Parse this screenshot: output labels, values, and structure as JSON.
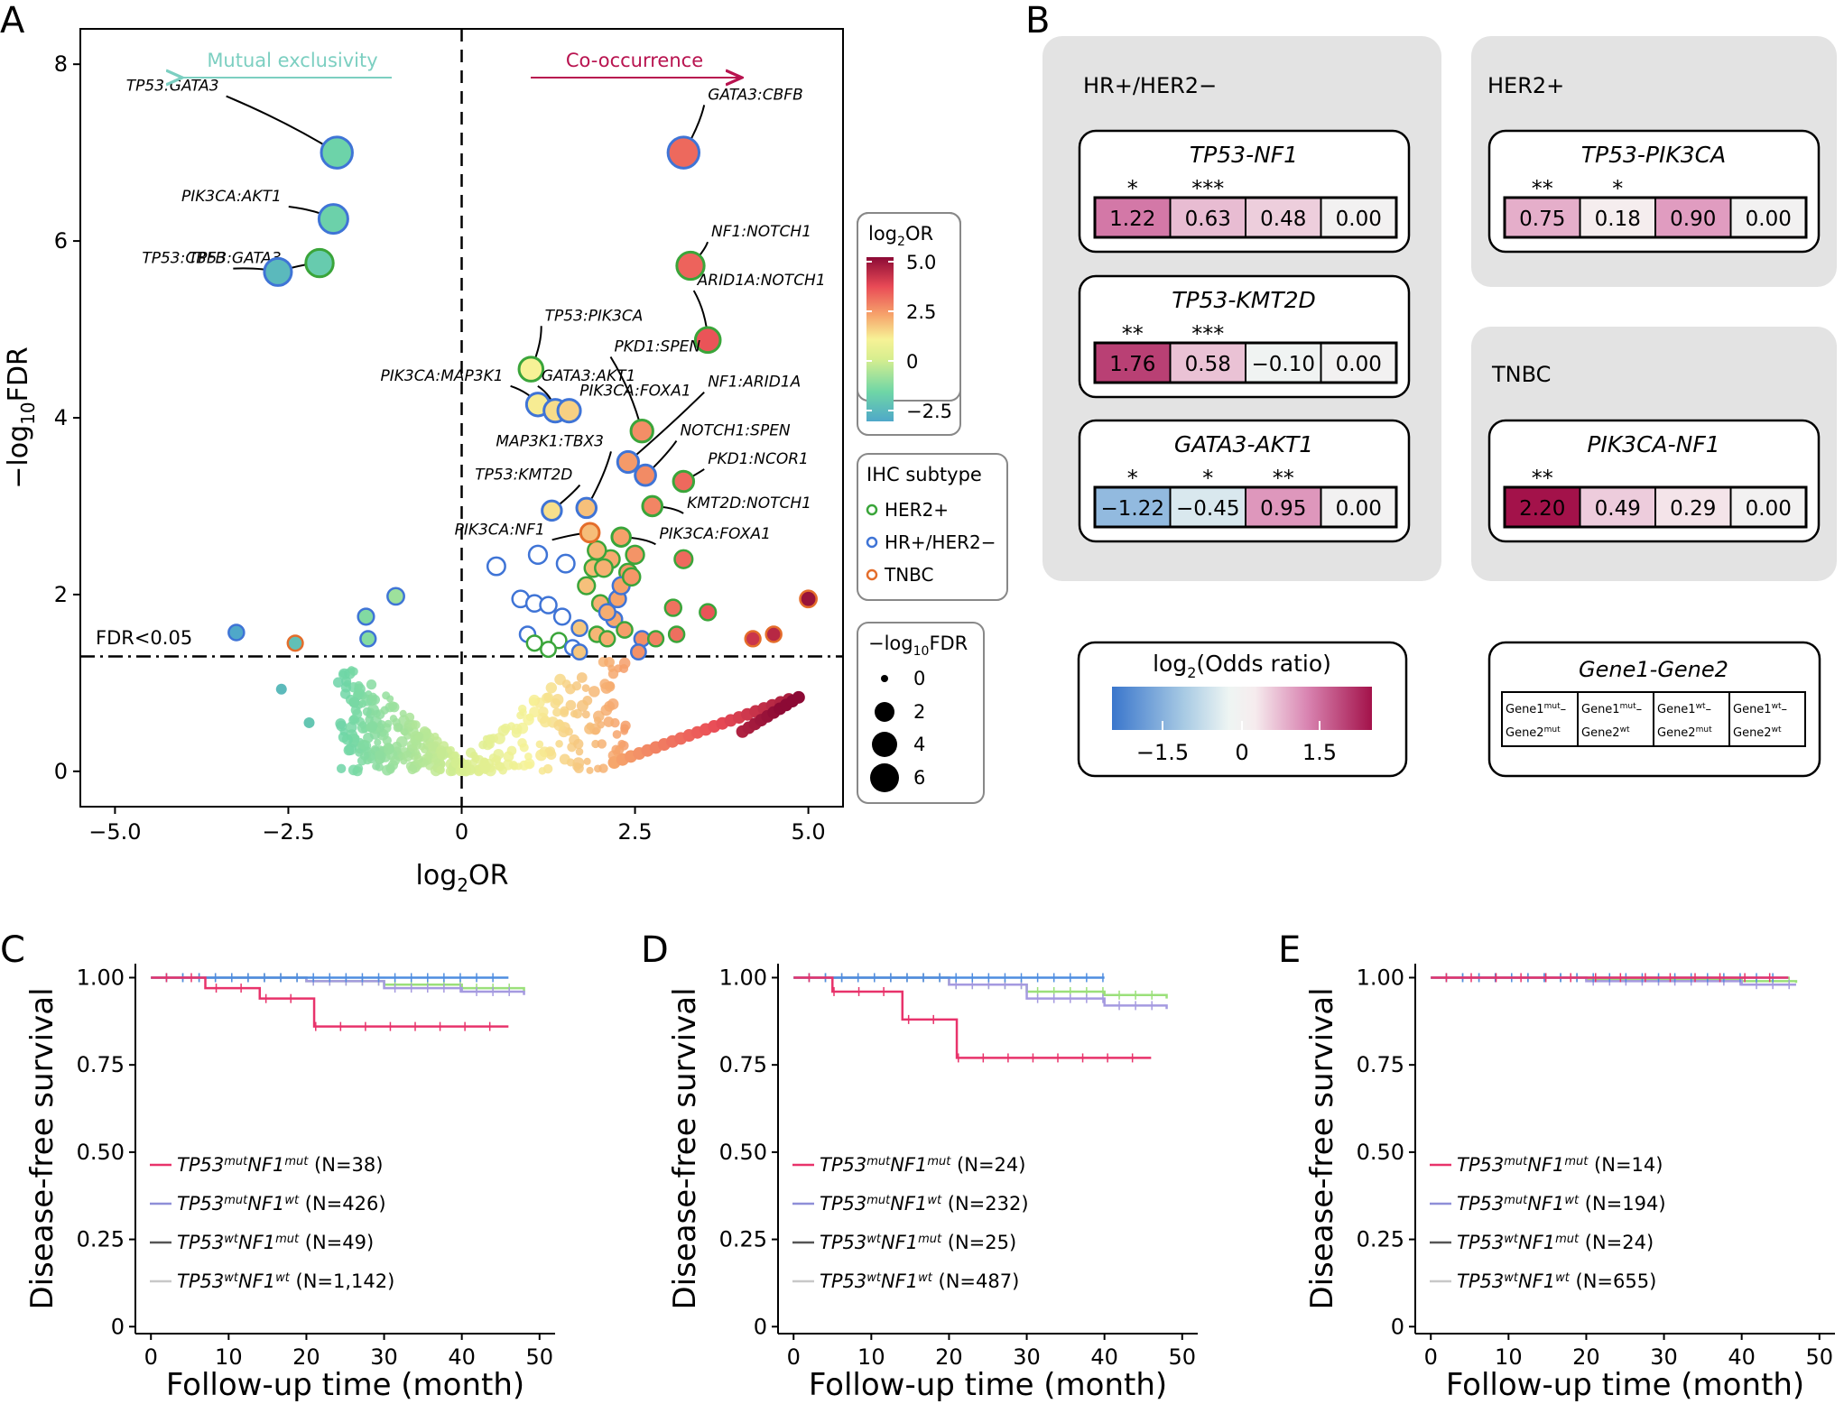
{
  "panels": {
    "a": "A",
    "b": "B",
    "c": "C",
    "d": "D",
    "e": "E"
  },
  "volcano": {
    "xlabel_base": "log",
    "xlabel_sub": "2",
    "xlabel_tail": "OR",
    "ylabel_head": "−log",
    "ylabel_sub": "10",
    "ylabel_tail": "FDR",
    "xticks": [
      "−5.0",
      "−2.5",
      "0",
      "2.5",
      "5.0"
    ],
    "yticks": [
      "0",
      "2",
      "4",
      "6",
      "8"
    ],
    "fdr_label": "FDR<0.05",
    "left_arrow": "Mutual exclusivity",
    "right_arrow": "Co-occurrence",
    "colors": {
      "left_arrow": "#7ccfc1",
      "right_arrow": "#b8134f"
    }
  },
  "legends": {
    "or": {
      "title_base": "log",
      "title_sub": "2",
      "title_tail": "OR",
      "ticks": [
        "5.0",
        "2.5",
        "0",
        "−2.5"
      ]
    },
    "ihc": {
      "title": "IHC subtype",
      "items": [
        {
          "label": "HER2+",
          "color": "#3aa53a"
        },
        {
          "label": "HR+/HER2−",
          "color": "#3f74d6"
        },
        {
          "label": "TNBC",
          "color": "#e46d2b"
        }
      ]
    },
    "fdr": {
      "title_head": "−log",
      "title_sub": "10",
      "title_tail": "FDR",
      "items": [
        "0",
        "2",
        "4",
        "6"
      ]
    }
  },
  "heatmap": {
    "groups": {
      "hr": "HR+/HER2−",
      "her2": "HER2+",
      "tnbc": "TNBC"
    },
    "pairs": [
      {
        "name": "TP53-NF1",
        "values": [
          "1.22",
          "0.63",
          "0.48",
          "0.00"
        ],
        "stars": [
          "*",
          "***",
          "",
          ""
        ]
      },
      {
        "name": "TP53-KMT2D",
        "values": [
          "1.76",
          "0.58",
          "−0.10",
          "0.00"
        ],
        "stars": [
          "**",
          "***",
          "",
          ""
        ]
      },
      {
        "name": "GATA3-AKT1",
        "values": [
          "−1.22",
          "−0.45",
          "0.95",
          "0.00"
        ],
        "stars": [
          "*",
          "*",
          "**",
          ""
        ]
      },
      {
        "name": "TP53-PIK3CA",
        "values": [
          "0.75",
          "0.18",
          "0.90",
          "0.00"
        ],
        "stars": [
          "**",
          "*",
          "",
          ""
        ]
      },
      {
        "name": "PIK3CA-NF1",
        "values": [
          "2.20",
          "0.49",
          "0.29",
          "0.00"
        ],
        "stars": [
          "**",
          "",
          "",
          ""
        ]
      }
    ],
    "scale": {
      "title_base": "log",
      "title_sub": "2",
      "title_tail": "(Odds ratio)",
      "ticks": [
        "−1.5",
        "0",
        "1.5"
      ]
    },
    "key": {
      "title": "Gene1-Gene2",
      "cells": [
        [
          {
            "t": "Gene1",
            "s": "mut",
            "e": "–"
          },
          {
            "t": "Gene2",
            "s": "mut",
            "e": ""
          }
        ],
        [
          {
            "t": "Gene1",
            "s": "mut",
            "e": "–"
          },
          {
            "t": "Gene2",
            "s": "wt",
            "e": ""
          }
        ],
        [
          {
            "t": "Gene1",
            "s": "wt",
            "e": "–"
          },
          {
            "t": "Gene2",
            "s": "mut",
            "e": ""
          }
        ],
        [
          {
            "t": "Gene1",
            "s": "wt",
            "e": "–"
          },
          {
            "t": "Gene2",
            "s": "wt",
            "e": ""
          }
        ]
      ]
    }
  },
  "km": {
    "ylabel": "Disease-free survival",
    "xlabel": "Follow-up time (month)",
    "yticks": [
      "1.00",
      "0.75",
      "0.50",
      "0.25",
      "0"
    ],
    "xticks": [
      "0",
      "10",
      "20",
      "30",
      "40",
      "50"
    ],
    "colors": [
      "#e8336b",
      "#8f8fd8",
      "#555555",
      "#c8c8c8"
    ],
    "panels": [
      {
        "legend": [
          {
            "g1": "TP53",
            "s1": "mut",
            "g2": "NF1",
            "s2": "mut",
            "n": " (N=38)"
          },
          {
            "g1": "TP53",
            "s1": "mut",
            "g2": "NF1",
            "s2": "wt",
            "n": " (N=426)"
          },
          {
            "g1": "TP53",
            "s1": "wt",
            "g2": "NF1",
            "s2": "mut",
            "n": " (N=49)"
          },
          {
            "g1": "TP53",
            "s1": "wt",
            "g2": "NF1",
            "s2": "wt",
            "n": " (N=1,142)"
          }
        ]
      },
      {
        "legend": [
          {
            "g1": "TP53",
            "s1": "mut",
            "g2": "NF1",
            "s2": "mut",
            "n": " (N=24)"
          },
          {
            "g1": "TP53",
            "s1": "mut",
            "g2": "NF1",
            "s2": "wt",
            "n": " (N=232)"
          },
          {
            "g1": "TP53",
            "s1": "wt",
            "g2": "NF1",
            "s2": "mut",
            "n": " (N=25)"
          },
          {
            "g1": "TP53",
            "s1": "wt",
            "g2": "NF1",
            "s2": "wt",
            "n": " (N=487)"
          }
        ]
      },
      {
        "legend": [
          {
            "g1": "TP53",
            "s1": "mut",
            "g2": "NF1",
            "s2": "mut",
            "n": " (N=14)"
          },
          {
            "g1": "TP53",
            "s1": "mut",
            "g2": "NF1",
            "s2": "wt",
            "n": " (N=194)"
          },
          {
            "g1": "TP53",
            "s1": "wt",
            "g2": "NF1",
            "s2": "mut",
            "n": " (N=24)"
          },
          {
            "g1": "TP53",
            "s1": "wt",
            "g2": "NF1",
            "s2": "wt",
            "n": " (N=655)"
          }
        ]
      }
    ]
  },
  "chart_data": [
    {
      "type": "scatter",
      "title": "",
      "xlabel": "log2OR",
      "ylabel": "−log10FDR",
      "xlim": [
        -5.5,
        5.5
      ],
      "ylim": [
        -0.4,
        8.4
      ],
      "threshold_y": 1.3,
      "labeled_points": [
        {
          "label": "TP53:GATA3",
          "x": -1.8,
          "y": 7.0,
          "subtype": "HR+/HER2−"
        },
        {
          "label": "PIK3CA:AKT1",
          "x": -1.85,
          "y": 6.25,
          "subtype": "HR+/HER2−"
        },
        {
          "label": "TP53:GATA3",
          "x": -2.05,
          "y": 5.75,
          "subtype": "HER2+"
        },
        {
          "label": "TP53:CBFB",
          "x": -2.65,
          "y": 5.65,
          "subtype": "HR+/HER2−"
        },
        {
          "label": "GATA3:CBFB",
          "x": 3.2,
          "y": 7.0,
          "subtype": "HR+/HER2−"
        },
        {
          "label": "NF1:NOTCH1",
          "x": 3.3,
          "y": 5.72,
          "subtype": "HER2+"
        },
        {
          "label": "ARID1A:NOTCH1",
          "x": 3.55,
          "y": 4.88,
          "subtype": "HER2+"
        },
        {
          "label": "TP53:PIK3CA",
          "x": 1.0,
          "y": 4.55,
          "subtype": "HER2+"
        },
        {
          "label": "PIK3CA:MAP3K1",
          "x": 1.1,
          "y": 4.15,
          "subtype": "HR+/HER2−"
        },
        {
          "label": "GATA3:AKT1",
          "x": 1.35,
          "y": 4.08,
          "subtype": "HR+/HER2−"
        },
        {
          "label": "PIK3CA:FOXA1",
          "x": 1.55,
          "y": 4.08,
          "subtype": "HR+/HER2−"
        },
        {
          "label": "PKD1:SPEN",
          "x": 2.6,
          "y": 3.85,
          "subtype": "HER2+"
        },
        {
          "label": "NF1:ARID1A",
          "x": 2.4,
          "y": 3.5,
          "subtype": "HR+/HER2−"
        },
        {
          "label": "NOTCH1:SPEN",
          "x": 2.65,
          "y": 3.35,
          "subtype": "HR+/HER2−"
        },
        {
          "label": "PKD1:NCOR1",
          "x": 3.2,
          "y": 3.28,
          "subtype": "HER2+"
        },
        {
          "label": "MAP3K1:TBX3",
          "x": 1.8,
          "y": 2.98,
          "subtype": "HR+/HER2−"
        },
        {
          "label": "TP53:KMT2D",
          "x": 1.3,
          "y": 2.95,
          "subtype": "HR+/HER2−"
        },
        {
          "label": "KMT2D:NOTCH1",
          "x": 2.75,
          "y": 3.0,
          "subtype": "HER2+"
        },
        {
          "label": "PIK3CA:NF1",
          "x": 1.85,
          "y": 2.7,
          "subtype": "TNBC"
        },
        {
          "label": "PIK3CA:FOXA1",
          "x": 2.3,
          "y": 2.65,
          "subtype": "HER2+"
        }
      ]
    },
    {
      "type": "table",
      "title": "HR+/HER2−",
      "rows": [
        "TP53-NF1",
        "TP53-KMT2D",
        "GATA3-AKT1"
      ],
      "values": [
        [
          1.22,
          0.63,
          0.48,
          0.0
        ],
        [
          1.76,
          0.58,
          -0.1,
          0.0
        ],
        [
          -1.22,
          -0.45,
          0.95,
          0.0
        ]
      ]
    },
    {
      "type": "table",
      "title": "HER2+",
      "rows": [
        "TP53-PIK3CA"
      ],
      "values": [
        [
          0.75,
          0.18,
          0.9,
          0.0
        ]
      ]
    },
    {
      "type": "table",
      "title": "TNBC",
      "rows": [
        "PIK3CA-NF1"
      ],
      "values": [
        [
          2.2,
          0.49,
          0.29,
          0.0
        ]
      ]
    },
    {
      "type": "line",
      "title": "",
      "xlabel": "Follow-up time (month)",
      "ylabel": "Disease-free survival",
      "xlim": [
        -2,
        52
      ],
      "ylim": [
        -0.02,
        1.04
      ],
      "series": [
        {
          "name": "TP53mutNF1mut (N=38)",
          "x": [
            0,
            7,
            14,
            21,
            46
          ],
          "y": [
            1.0,
            0.97,
            0.94,
            0.86,
            0.86
          ]
        },
        {
          "name": "TP53mutNF1wt (N=426)",
          "x": [
            0,
            20,
            30,
            40,
            48
          ],
          "y": [
            1.0,
            0.99,
            0.97,
            0.96,
            0.95
          ]
        },
        {
          "name": "TP53wtNF1mut (N=49)",
          "x": [
            0,
            46
          ],
          "y": [
            1.0,
            1.0
          ]
        },
        {
          "name": "TP53wtNF1wt (N=1,142)",
          "x": [
            0,
            20,
            30,
            40,
            48
          ],
          "y": [
            1.0,
            0.99,
            0.98,
            0.97,
            0.96
          ]
        }
      ]
    },
    {
      "type": "line",
      "title": "",
      "xlabel": "Follow-up time (month)",
      "ylabel": "Disease-free survival",
      "xlim": [
        -2,
        52
      ],
      "ylim": [
        -0.02,
        1.04
      ],
      "series": [
        {
          "name": "TP53mutNF1mut (N=24)",
          "x": [
            0,
            5,
            14,
            21,
            46
          ],
          "y": [
            1.0,
            0.96,
            0.88,
            0.77,
            0.77
          ]
        },
        {
          "name": "TP53mutNF1wt (N=232)",
          "x": [
            0,
            20,
            30,
            40,
            48
          ],
          "y": [
            1.0,
            0.98,
            0.94,
            0.92,
            0.91
          ]
        },
        {
          "name": "TP53wtNF1mut (N=25)",
          "x": [
            0,
            40
          ],
          "y": [
            1.0,
            1.0
          ]
        },
        {
          "name": "TP53wtNF1wt (N=487)",
          "x": [
            0,
            20,
            30,
            40,
            48
          ],
          "y": [
            1.0,
            0.98,
            0.96,
            0.95,
            0.94
          ]
        }
      ]
    },
    {
      "type": "line",
      "title": "",
      "xlabel": "Follow-up time (month)",
      "ylabel": "Disease-free survival",
      "xlim": [
        -2,
        52
      ],
      "ylim": [
        -0.02,
        1.04
      ],
      "series": [
        {
          "name": "TP53mutNF1mut (N=14)",
          "x": [
            0,
            46
          ],
          "y": [
            1.0,
            1.0
          ]
        },
        {
          "name": "TP53mutNF1wt (N=194)",
          "x": [
            0,
            20,
            40,
            47
          ],
          "y": [
            1.0,
            0.99,
            0.98,
            0.98
          ]
        },
        {
          "name": "TP53wtNF1mut (N=24)",
          "x": [
            0,
            46
          ],
          "y": [
            1.0,
            1.0
          ]
        },
        {
          "name": "TP53wtNF1wt (N=655)",
          "x": [
            0,
            20,
            40,
            47
          ],
          "y": [
            1.0,
            0.995,
            0.99,
            0.985
          ]
        }
      ]
    }
  ]
}
